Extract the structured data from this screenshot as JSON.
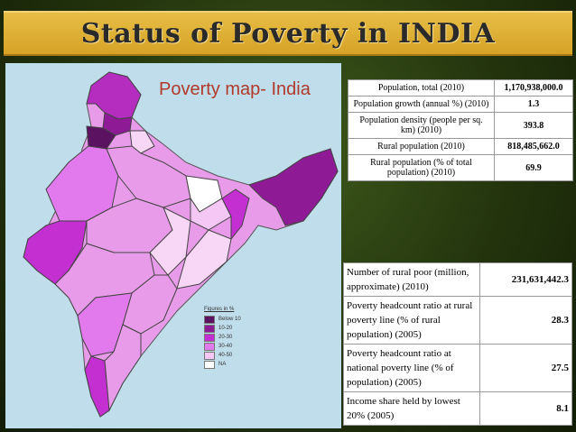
{
  "slide": {
    "title": "Status of Poverty in INDIA"
  },
  "map": {
    "title": "Poverty map- India",
    "legend_title": "Figures in %",
    "legend": [
      {
        "label": "Below 10",
        "color": "#5b1260"
      },
      {
        "label": "10-20",
        "color": "#8e1a96"
      },
      {
        "label": "20-30",
        "color": "#c32fd0"
      },
      {
        "label": "30-40",
        "color": "#e27aed"
      },
      {
        "label": "40-50",
        "color": "#f4c7f4"
      },
      {
        "label": "NA",
        "color": "#ffffff"
      }
    ],
    "ocean_color": "#c0ddeb"
  },
  "table_top": {
    "rows": [
      {
        "label": "Population, total (2010)",
        "value": "1,170,938,000.0"
      },
      {
        "label": "Population growth (annual %) (2010)",
        "value": "1.3"
      },
      {
        "label": "Population density (people per sq. km) (2010)",
        "value": "393.8"
      },
      {
        "label": "Rural population (2010)",
        "value": "818,485,662.0"
      },
      {
        "label": "Rural population (% of total population) (2010)",
        "value": "69.9"
      }
    ]
  },
  "table_bottom": {
    "rows": [
      {
        "label": "Number of rural poor (million, approximate) (2010)",
        "value": "231,631,442.3"
      },
      {
        "label": "Poverty headcount ratio at rural poverty line (% of rural population) (2005)",
        "value": "28.3"
      },
      {
        "label": "Poverty headcount ratio at national poverty line (% of population) (2005)",
        "value": "27.5"
      },
      {
        "label": "Income share held by lowest 20% (2005)",
        "value": "8.1"
      }
    ]
  }
}
